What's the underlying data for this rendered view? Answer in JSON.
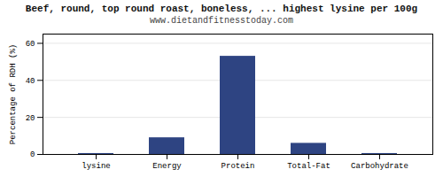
{
  "chart_data": {
    "type": "bar",
    "title": "Beef, round, top round roast, boneless, ... highest lysine per 100g",
    "subtitle": "www.dietandfitnesstoday.com",
    "ylabel": "Percentage of RDH (%)",
    "categories": [
      "lysine",
      "Energy",
      "Protein",
      "Total-Fat",
      "Carbohydrate"
    ],
    "values": [
      0.5,
      9,
      53,
      6,
      0.5
    ],
    "color": "#2e4482",
    "ylim": [
      0,
      65
    ],
    "yticks": [
      0,
      20,
      40,
      60
    ],
    "grid": true
  }
}
